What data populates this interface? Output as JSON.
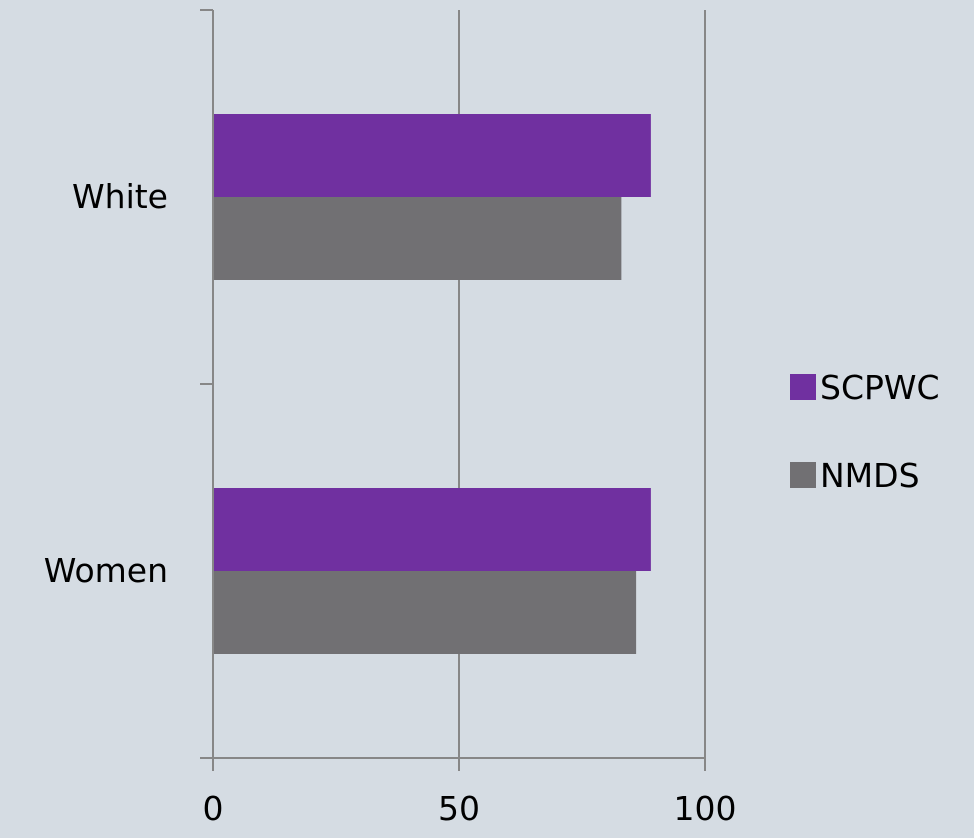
{
  "colors": {
    "background": "#D5DCE3",
    "axis": "#878787",
    "gridline": "#878787"
  },
  "chart_data": {
    "type": "bar",
    "orientation": "horizontal",
    "title": "",
    "xlabel": "",
    "ylabel": "",
    "categories": [
      "White",
      "Women"
    ],
    "series": [
      {
        "name": "SCPWC",
        "color": "#7030A0",
        "values": [
          89,
          89
        ]
      },
      {
        "name": "NMDS",
        "color": "#717073",
        "values": [
          83,
          86
        ]
      }
    ],
    "xlim": [
      0,
      100
    ],
    "xticks": [
      0,
      50,
      100
    ],
    "grid": true,
    "legend": "right"
  }
}
